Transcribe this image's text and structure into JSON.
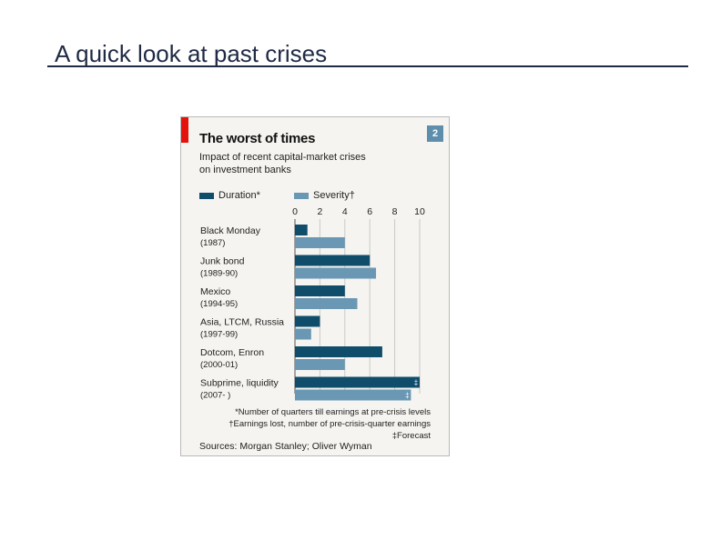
{
  "slide": {
    "title": "A quick look at past crises"
  },
  "chart_data": {
    "type": "bar",
    "orientation": "horizontal",
    "title": "The worst of times",
    "subtitle_line1": "Impact of recent capital-market crises",
    "subtitle_line2": "on investment banks",
    "chart_number": "2",
    "xlim": [
      0,
      10
    ],
    "xticks": [
      "0",
      "2",
      "4",
      "6",
      "8",
      "10"
    ],
    "categories": [
      {
        "name": "Black Monday",
        "period": "(1987)"
      },
      {
        "name": "Junk bond",
        "period": "(1989-90)"
      },
      {
        "name": "Mexico",
        "period": "(1994-95)"
      },
      {
        "name": "Asia, LTCM, Russia",
        "period": "(1997-99)"
      },
      {
        "name": "Dotcom, Enron",
        "period": "(2000-01)"
      },
      {
        "name": "Subprime, liquidity",
        "period": "(2007- )"
      }
    ],
    "series": [
      {
        "name": "Duration*",
        "color": "#0f4d6b",
        "values": [
          1,
          6,
          4,
          2,
          7,
          10
        ],
        "forecast": [
          false,
          false,
          false,
          false,
          false,
          true
        ]
      },
      {
        "name": "Severity†",
        "color": "#6a98b4",
        "values": [
          4,
          6.5,
          5,
          1.3,
          4,
          9.3
        ],
        "forecast": [
          false,
          false,
          false,
          false,
          false,
          true
        ]
      }
    ],
    "forecast_mark": "‡",
    "footnotes": {
      "duration": "*Number of quarters till earnings at pre-crisis levels",
      "severity": "†Earnings lost, number of pre-crisis-quarter earnings",
      "forecast": "‡Forecast"
    },
    "source": "Sources: Morgan Stanley; Oliver Wyman"
  }
}
